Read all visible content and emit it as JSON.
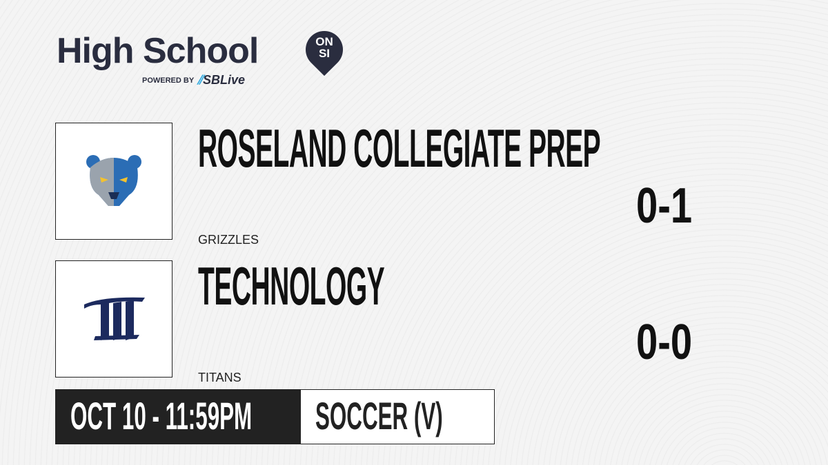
{
  "brand": {
    "title": "High School",
    "badge_top": "ON",
    "badge_bottom": "SI",
    "powered_by": "POWERED BY",
    "partner": "SBLive",
    "partner_accent": "#2aa7df",
    "color": "#2a2d3f"
  },
  "teams": [
    {
      "name": "ROSELAND COLLEGIATE PREP",
      "mascot": "GRIZZLES",
      "record": "0-1",
      "logo": "grizzly-bear-logo"
    },
    {
      "name": "TECHNOLOGY",
      "mascot": "TITANS",
      "record": "0-0",
      "logo": "titans-tt-logo"
    }
  ],
  "game": {
    "datetime": "OCT 10 - 11:59PM",
    "sport": "SOCCER (V)"
  }
}
